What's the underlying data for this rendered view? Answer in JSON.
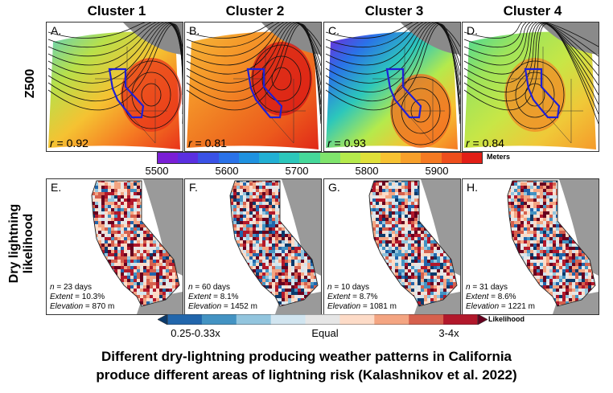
{
  "clusters": [
    "Cluster 1",
    "Cluster 2",
    "Cluster 3",
    "Cluster 4"
  ],
  "row_labels": {
    "top": "Z500",
    "bottom_line1": "Dry lightning",
    "bottom_line2": "likelihood"
  },
  "z500_panels": [
    {
      "label": "A.",
      "r": "0.92",
      "theme": "warm"
    },
    {
      "label": "B.",
      "r": "0.81",
      "theme": "hot"
    },
    {
      "label": "C.",
      "r": "0.93",
      "theme": "cold"
    },
    {
      "label": "D.",
      "r": "0.84",
      "theme": "mild"
    }
  ],
  "lightning_panels": [
    {
      "label": "E.",
      "n": "23 days",
      "extent": "10.3%",
      "elevation": "870 m"
    },
    {
      "label": "F.",
      "n": "60 days",
      "extent": "8.1%",
      "elevation": "1452 m"
    },
    {
      "label": "G.",
      "n": "10 days",
      "extent": "8.7%",
      "elevation": "1081 m"
    },
    {
      "label": "H.",
      "n": "31 days",
      "extent": "8.6%",
      "elevation": "1221 m"
    }
  ],
  "stat_labels": {
    "n": "n",
    "extent": "Extent",
    "elevation": "Elevation",
    "r": "r"
  },
  "colorbar_z500": {
    "unit": "Meters",
    "ticks": [
      "5500",
      "5600",
      "5700",
      "5800",
      "5900"
    ],
    "colors": [
      "#7a1fd6",
      "#5a2fe0",
      "#3a52e6",
      "#2a72e8",
      "#1f92e0",
      "#22b0d4",
      "#2cc7bb",
      "#45d89a",
      "#7fe46c",
      "#b5ea4c",
      "#e0e03a",
      "#f7c232",
      "#f8a02a",
      "#f57a22",
      "#ee4e1c",
      "#e21e16"
    ]
  },
  "colorbar_likelihood": {
    "unit": "Likelihood",
    "low_label": "0.25-0.33x",
    "mid_label": "Equal",
    "high_label": "3-4x",
    "colors": [
      "#0b3a6b",
      "#2166ac",
      "#4393c3",
      "#92c5de",
      "#d1e5f0",
      "#e6e6e6",
      "#fddbc7",
      "#f4a582",
      "#d6604d",
      "#b2182b",
      "#67001f"
    ]
  },
  "caption": {
    "line1": "Different dry-lightning producing weather patterns in California",
    "line2": "produce different areas of lightning risk (Kalashnikov et al. 2022)"
  }
}
